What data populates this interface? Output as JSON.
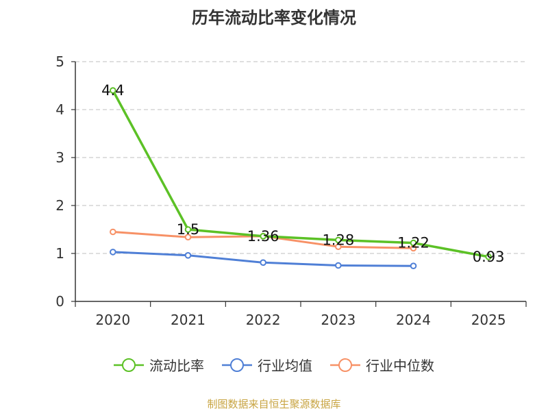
{
  "chart_data": {
    "type": "line",
    "title": "历年流动比率变化情况",
    "categories": [
      "2020",
      "2021",
      "2022",
      "2023",
      "2024",
      "2025"
    ],
    "ylim": [
      0,
      5
    ],
    "yticks": [
      "0",
      "1",
      "2",
      "3",
      "4",
      "5"
    ],
    "grid": true,
    "legend_position": "bottom",
    "series": [
      {
        "name": "流动比率",
        "color": "#5cc126",
        "values": [
          4.4,
          1.5,
          1.36,
          1.28,
          1.22,
          0.93
        ],
        "labels": [
          "4.4",
          "1.5",
          "1.36",
          "1.28",
          "1.22",
          "0.93"
        ]
      },
      {
        "name": "行业均值",
        "color": "#4f7fd6",
        "values": [
          1.03,
          0.96,
          0.81,
          0.75,
          0.74,
          null
        ]
      },
      {
        "name": "行业中位数",
        "color": "#f79166",
        "values": [
          1.45,
          1.34,
          1.36,
          1.14,
          1.11,
          null
        ]
      }
    ]
  },
  "source": "制图数据来自恒生聚源数据库"
}
